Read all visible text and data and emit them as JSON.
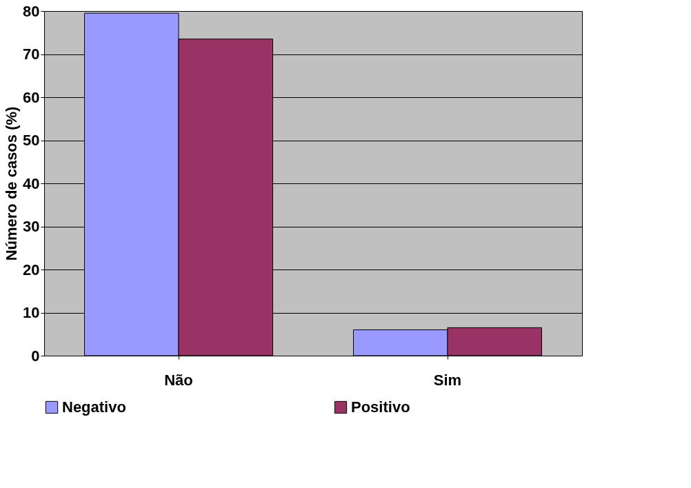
{
  "chart_data": {
    "type": "bar",
    "ylabel": "Número de casos (%)",
    "categories": [
      "Não",
      "Sim"
    ],
    "series": [
      {
        "name": "Negativo",
        "color": "#9999ff",
        "values": [
          79.5,
          6
        ]
      },
      {
        "name": "Positivo",
        "color": "#993366",
        "values": [
          73.5,
          6.5
        ]
      }
    ],
    "ylim": [
      0,
      80
    ],
    "yticks": [
      0,
      10,
      20,
      30,
      40,
      50,
      60,
      70,
      80
    ],
    "grid": "y",
    "legend": "bottom"
  }
}
